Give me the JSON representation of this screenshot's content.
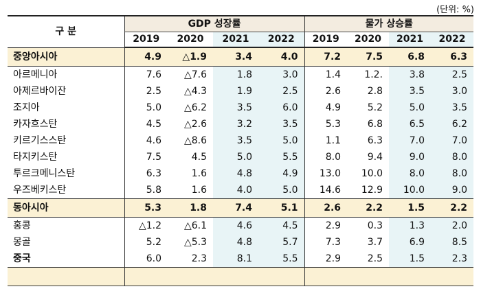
{
  "unit_note": "(단위: %)",
  "header": {
    "category": "구 분",
    "gdp_label": "GDP 성장률",
    "price_label": "물가 상승률",
    "years": [
      "2019",
      "2020",
      "2021",
      "2022"
    ]
  },
  "rows": [
    {
      "name": "중앙아시아",
      "region": true,
      "gdp": [
        "4.9",
        "△1.9",
        "3.4",
        "4.0"
      ],
      "price": [
        "7.2",
        "7.5",
        "6.8",
        "6.3"
      ]
    },
    {
      "name": "아르메니아",
      "gdp": [
        "7.6",
        "△7.6",
        "1.8",
        "3.0"
      ],
      "price": [
        "1.4",
        "1.2.",
        "3.8",
        "2.5"
      ]
    },
    {
      "name": "아제르바이잔",
      "gdp": [
        "2.5",
        "△4.3",
        "1.9",
        "2.5"
      ],
      "price": [
        "2.6",
        "2.8",
        "3.5",
        "3.0"
      ]
    },
    {
      "name": "조지아",
      "gdp": [
        "5.0",
        "△6.2",
        "3.5",
        "6.0"
      ],
      "price": [
        "4.9",
        "5.2",
        "5.0",
        "3.5"
      ]
    },
    {
      "name": "카자흐스탄",
      "gdp": [
        "4.5",
        "△2.6",
        "3.2",
        "3.5"
      ],
      "price": [
        "5.3",
        "6.8",
        "6.5",
        "6.2"
      ]
    },
    {
      "name": "키르기스스탄",
      "gdp": [
        "4.6",
        "△8.6",
        "3.5",
        "5.0"
      ],
      "price": [
        "1.1",
        "6.3",
        "7.0",
        "7.0"
      ]
    },
    {
      "name": "타지키스탄",
      "gdp": [
        "7.5",
        "4.5",
        "5.0",
        "5.5"
      ],
      "price": [
        "8.0",
        "9.4",
        "9.0",
        "8.0"
      ]
    },
    {
      "name": "투르크메니스탄",
      "gdp": [
        "6.3",
        "1.6",
        "4.8",
        "4.9"
      ],
      "price": [
        "13.0",
        "10.0",
        "8.0",
        "8.0"
      ]
    },
    {
      "name": "우즈베키스탄",
      "gdp": [
        "5.8",
        "1.6",
        "4.0",
        "5.0"
      ],
      "price": [
        "14.6",
        "12.9",
        "10.0",
        "9.0"
      ]
    },
    {
      "name": "동아시아",
      "region": true,
      "gdp": [
        "5.3",
        "1.8",
        "7.4",
        "5.1"
      ],
      "price": [
        "2.6",
        "2.2",
        "1.5",
        "2.2"
      ]
    },
    {
      "name": "홍콩",
      "gdp": [
        "△1.2",
        "△6.1",
        "4.6",
        "4.5"
      ],
      "price": [
        "2.9",
        "0.3",
        "1.3",
        "2.0"
      ]
    },
    {
      "name": "몽골",
      "gdp": [
        "5.2",
        "△5.3",
        "4.8",
        "5.7"
      ],
      "price": [
        "7.3",
        "3.7",
        "6.9",
        "8.5"
      ]
    },
    {
      "name": "중국",
      "bold": true,
      "gdp": [
        "6.0",
        "2.3",
        "8.1",
        "5.5"
      ],
      "price": [
        "2.9",
        "2.5",
        "1.5",
        "2.3"
      ]
    },
    {
      "name": "",
      "region": true,
      "gdp": [
        "",
        "",
        "",
        ""
      ],
      "price": [
        "",
        "",
        "",
        ""
      ]
    }
  ]
}
